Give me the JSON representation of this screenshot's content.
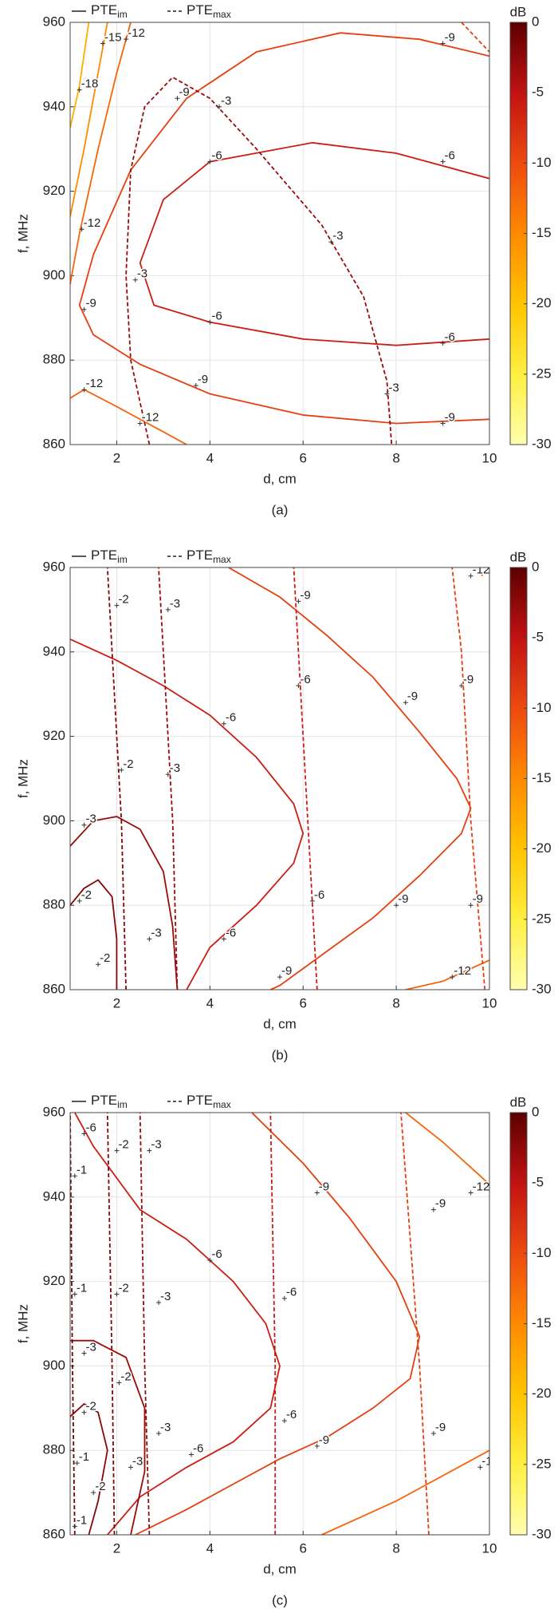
{
  "chart_data": [
    {
      "type": "contour",
      "caption": "(a)",
      "x_label": "d, cm",
      "y_label": "f, MHz",
      "xlim": [
        1,
        10
      ],
      "ylim": [
        860,
        960
      ],
      "xticks": [
        2,
        4,
        6,
        8,
        10
      ],
      "yticks": [
        860,
        880,
        900,
        920,
        940,
        960
      ],
      "grid": true,
      "legend": [
        {
          "label": "PTE",
          "subscript": "im",
          "dashed": false
        },
        {
          "label": "PTE",
          "subscript": "max",
          "dashed": true
        }
      ],
      "colorbar": {
        "label": "dB",
        "clim": [
          -30,
          0
        ],
        "ticks": [
          -30,
          -25,
          -20,
          -15,
          -10,
          -5,
          0
        ],
        "colors": [
          "#ffffb0",
          "#ffef40",
          "#ffc400",
          "#ff8a00",
          "#ee4a10",
          "#c21212",
          "#5c0000"
        ]
      },
      "contours": [
        {
          "level": -18,
          "dashed": false,
          "x": [
            1.0,
            1.2,
            1.4
          ],
          "y": [
            935,
            945,
            960
          ],
          "labels": {
            "x": [
              1.2
            ],
            "y": [
              944
            ]
          }
        },
        {
          "level": -15,
          "dashed": false,
          "x": [
            1.0,
            1.3,
            1.55,
            1.8
          ],
          "y": [
            914,
            930,
            945,
            960
          ],
          "labels": {
            "x": [
              1.7
            ],
            "y": [
              955
            ]
          }
        },
        {
          "level": -12,
          "dashed": false,
          "x": [
            1.0,
            1.2,
            1.6,
            2.0,
            2.3
          ],
          "y": [
            898,
            910,
            930,
            948,
            960
          ],
          "labels": {
            "x": [
              1.25,
              2.2
            ],
            "y": [
              911,
              956
            ]
          }
        },
        {
          "level": -9,
          "dashed": false,
          "x": [
            10,
            8.5,
            6.8,
            5.0,
            3.5,
            2.3,
            1.5,
            1.2,
            1.5,
            2.5,
            4.0,
            6.0,
            8.0,
            10
          ],
          "y": [
            952,
            956,
            957.5,
            953,
            942,
            925,
            905,
            893,
            886,
            879,
            872,
            867,
            865,
            866
          ],
          "labels": {
            "x": [
              9,
              3.3,
              1.3,
              3.7,
              9
            ],
            "y": [
              955,
              942,
              892,
              874,
              865
            ]
          }
        },
        {
          "level": -6,
          "dashed": false,
          "x": [
            10,
            8.0,
            6.2,
            4.0,
            3.0,
            2.5,
            2.8,
            4.0,
            6.0,
            8.0,
            10
          ],
          "y": [
            923,
            929,
            931.5,
            927,
            918,
            903,
            893,
            889,
            885,
            883.5,
            885
          ],
          "labels": {
            "x": [
              4,
              9,
              4,
              9
            ],
            "y": [
              927,
              927,
              889,
              884
            ]
          }
        },
        {
          "level": -12,
          "dashed": false,
          "x": [
            1.0,
            1.3,
            2.0,
            3.0,
            3.5
          ],
          "y": [
            871,
            873,
            869,
            863,
            860
          ],
          "labels": {
            "x": [
              1.3,
              2.5
            ],
            "y": [
              873,
              865
            ]
          }
        },
        {
          "level": -3,
          "dashed": true,
          "x": [
            2.7,
            2.3,
            2.2,
            2.3,
            2.6,
            3.2,
            4.0,
            5.0,
            6.4,
            7.3,
            7.8,
            7.9
          ],
          "y": [
            860,
            880,
            900,
            925,
            940,
            947,
            942,
            930,
            912,
            895,
            875,
            860
          ],
          "labels": {
            "x": [
              4.2,
              6.6,
              7.8,
              2.4
            ],
            "y": [
              940,
              908,
              872,
              899
            ]
          }
        },
        {
          "level": -9,
          "dashed": true,
          "x": [
            9.4,
            10
          ],
          "y": [
            960,
            953
          ],
          "labels": {
            "x": [],
            "y": []
          }
        }
      ]
    },
    {
      "type": "contour",
      "caption": "(b)",
      "x_label": "d, cm",
      "y_label": "f, MHz",
      "xlim": [
        1,
        10
      ],
      "ylim": [
        860,
        960
      ],
      "xticks": [
        2,
        4,
        6,
        8,
        10
      ],
      "yticks": [
        860,
        880,
        900,
        920,
        940,
        960
      ],
      "grid": true,
      "legend": [
        {
          "label": "PTE",
          "subscript": "im",
          "dashed": false
        },
        {
          "label": "PTE",
          "subscript": "max",
          "dashed": true
        }
      ],
      "colorbar": {
        "label": "dB",
        "clim": [
          -30,
          0
        ],
        "ticks": [
          -30,
          -25,
          -20,
          -15,
          -10,
          -5,
          0
        ],
        "colors": [
          "#ffffb0",
          "#ffef40",
          "#ffc400",
          "#ff8a00",
          "#ee4a10",
          "#c21212",
          "#5c0000"
        ]
      },
      "contours": [
        {
          "level": -3,
          "dashed": false,
          "x": [
            1.0,
            1.5,
            2.0,
            2.5,
            3.0,
            3.2,
            3.3
          ],
          "y": [
            894,
            900,
            901,
            898,
            888,
            875,
            860
          ],
          "labels": {
            "x": [
              1.3,
              2.7
            ],
            "y": [
              899,
              872
            ]
          }
        },
        {
          "level": -2,
          "dashed": false,
          "x": [
            1.0,
            1.3,
            1.6,
            1.9,
            2.0,
            2.0
          ],
          "y": [
            880,
            884,
            886,
            882,
            872,
            860
          ],
          "labels": {
            "x": [
              1.2,
              1.6
            ],
            "y": [
              881,
              866
            ]
          }
        },
        {
          "level": -6,
          "dashed": false,
          "x": [
            1.0,
            2.0,
            3.0,
            4.0,
            5.0,
            5.8,
            6.0,
            5.8,
            5.0,
            4.0,
            3.5
          ],
          "y": [
            943,
            938,
            932,
            925,
            915,
            904,
            897,
            890,
            880,
            870,
            860
          ],
          "labels": {
            "x": [
              4.3,
              4.3
            ],
            "y": [
              923,
              872
            ]
          }
        },
        {
          "level": -9,
          "dashed": false,
          "x": [
            4.4,
            5.5,
            6.5,
            7.5,
            8.5,
            9.3,
            9.6,
            9.4,
            8.5,
            7.5,
            6.5,
            5.5,
            5.3
          ],
          "y": [
            960,
            953,
            944,
            934,
            921,
            910,
            903,
            897,
            887,
            877,
            869,
            861,
            860
          ],
          "labels": {
            "x": [
              5.9,
              8.2,
              8.0,
              5.5
            ],
            "y": [
              952,
              928,
              880,
              863
            ]
          }
        },
        {
          "level": -12,
          "dashed": false,
          "x": [
            8.2,
            9.0,
            10
          ],
          "y": [
            860,
            862,
            867
          ],
          "labels": {
            "x": [
              9.2
            ],
            "y": [
              863
            ]
          }
        },
        {
          "level": -2,
          "dashed": true,
          "x": [
            2.2,
            2.1,
            1.9,
            1.8
          ],
          "y": [
            860,
            900,
            940,
            960
          ],
          "labels": {
            "x": [
              2.0,
              2.1
            ],
            "y": [
              951,
              912
            ]
          }
        },
        {
          "level": -3,
          "dashed": true,
          "x": [
            3.3,
            3.2,
            3.0,
            2.9
          ],
          "y": [
            860,
            900,
            940,
            960
          ],
          "labels": {
            "x": [
              3.1,
              3.1
            ],
            "y": [
              950,
              911
            ]
          }
        },
        {
          "level": -6,
          "dashed": true,
          "x": [
            6.3,
            6.1,
            5.9,
            5.8
          ],
          "y": [
            860,
            900,
            940,
            960
          ],
          "labels": {
            "x": [
              5.9,
              6.2
            ],
            "y": [
              932,
              881
            ]
          }
        },
        {
          "level": -9,
          "dashed": true,
          "x": [
            9.9,
            9.6,
            9.4,
            9.2
          ],
          "y": [
            860,
            900,
            940,
            960
          ],
          "labels": {
            "x": [
              9.4,
              9.6
            ],
            "y": [
              932,
              880
            ]
          }
        },
        {
          "level": -12,
          "dashed": true,
          "x": [
            9.75,
            9.85
          ],
          "y": [
            960,
            958
          ],
          "labels": {
            "x": [
              9.6
            ],
            "y": [
              958
            ]
          }
        }
      ]
    },
    {
      "type": "contour",
      "caption": "(c)",
      "x_label": "d, cm",
      "y_label": "f, MHz",
      "xlim": [
        1,
        10
      ],
      "ylim": [
        860,
        960
      ],
      "xticks": [
        2,
        4,
        6,
        8,
        10
      ],
      "yticks": [
        860,
        880,
        900,
        920,
        940,
        960
      ],
      "grid": true,
      "legend": [
        {
          "label": "PTE",
          "subscript": "im",
          "dashed": false
        },
        {
          "label": "PTE",
          "subscript": "max",
          "dashed": true
        }
      ],
      "colorbar": {
        "label": "dB",
        "clim": [
          -30,
          0
        ],
        "ticks": [
          -30,
          -25,
          -20,
          -15,
          -10,
          -5,
          0
        ],
        "colors": [
          "#ffffb0",
          "#ffef40",
          "#ffc400",
          "#ff8a00",
          "#ee4a10",
          "#c21212",
          "#5c0000"
        ]
      },
      "contours": [
        {
          "level": -6,
          "dashed": false,
          "x": [
            1.1,
            1.5,
            2.5,
            3.5,
            4.5,
            5.2,
            5.5,
            5.3,
            4.5,
            3.5,
            2.5,
            1.8
          ],
          "y": [
            960,
            952,
            937,
            930,
            920,
            910,
            900,
            890,
            882,
            876,
            869,
            860
          ],
          "labels": {
            "x": [
              1.3,
              4.0,
              3.6
            ],
            "y": [
              955,
              925,
              879
            ]
          }
        },
        {
          "level": -3,
          "dashed": false,
          "x": [
            1.0,
            1.5,
            2.2,
            2.6,
            2.6,
            2.3
          ],
          "y": [
            906,
            906,
            902,
            890,
            875,
            860
          ],
          "labels": {
            "x": [
              1.3,
              2.3
            ],
            "y": [
              903,
              876
            ]
          }
        },
        {
          "level": -2,
          "dashed": false,
          "x": [
            1.0,
            1.3,
            1.6,
            1.8,
            1.6,
            1.4
          ],
          "y": [
            888,
            891,
            889,
            880,
            868,
            860
          ],
          "labels": {
            "x": [
              1.3,
              1.5
            ],
            "y": [
              889,
              870
            ]
          }
        },
        {
          "level": -9,
          "dashed": false,
          "x": [
            4.9,
            6.0,
            7.0,
            8.0,
            8.5,
            8.3,
            7.5,
            6.5,
            5.5,
            4.5,
            3.5,
            2.4
          ],
          "y": [
            960,
            948,
            935,
            920,
            907,
            897,
            890,
            883,
            878,
            872,
            866,
            860
          ],
          "labels": {
            "x": [
              6.3,
              6.3
            ],
            "y": [
              941,
              881
            ]
          }
        },
        {
          "level": -12,
          "dashed": false,
          "x": [
            8.2,
            9.0,
            10
          ],
          "y": [
            960,
            953,
            943
          ],
          "labels": {
            "x": [
              9.6
            ],
            "y": [
              941
            ]
          }
        },
        {
          "level": -12,
          "dashed": false,
          "x": [
            6.4,
            8.0,
            10
          ],
          "y": [
            860,
            868,
            880
          ],
          "labels": {
            "x": [
              9.8
            ],
            "y": [
              876
            ]
          }
        },
        {
          "level": -1,
          "dashed": true,
          "x": [
            1.1,
            1.05,
            1.0
          ],
          "y": [
            860,
            900,
            960
          ],
          "labels": {
            "x": [
              1.1,
              1.1,
              1.15,
              1.1
            ],
            "y": [
              945,
              917,
              877,
              862
            ]
          }
        },
        {
          "level": -2,
          "dashed": true,
          "x": [
            1.95,
            1.9,
            1.8
          ],
          "y": [
            860,
            900,
            960
          ],
          "labels": {
            "x": [
              2.0,
              2.0,
              2.05
            ],
            "y": [
              951,
              917,
              896
            ]
          }
        },
        {
          "level": -3,
          "dashed": true,
          "x": [
            2.7,
            2.6,
            2.5
          ],
          "y": [
            860,
            900,
            960
          ],
          "labels": {
            "x": [
              2.7,
              2.9,
              2.9
            ],
            "y": [
              951,
              915,
              884
            ]
          }
        },
        {
          "level": -6,
          "dashed": true,
          "x": [
            5.4,
            5.4,
            5.3
          ],
          "y": [
            860,
            900,
            960
          ],
          "labels": {
            "x": [
              5.6,
              5.6
            ],
            "y": [
              916,
              887
            ]
          }
        },
        {
          "level": -9,
          "dashed": true,
          "x": [
            8.7,
            8.5,
            8.1
          ],
          "y": [
            860,
            900,
            960
          ],
          "labels": {
            "x": [
              8.8,
              8.8
            ],
            "y": [
              937,
              884
            ]
          }
        }
      ]
    }
  ]
}
